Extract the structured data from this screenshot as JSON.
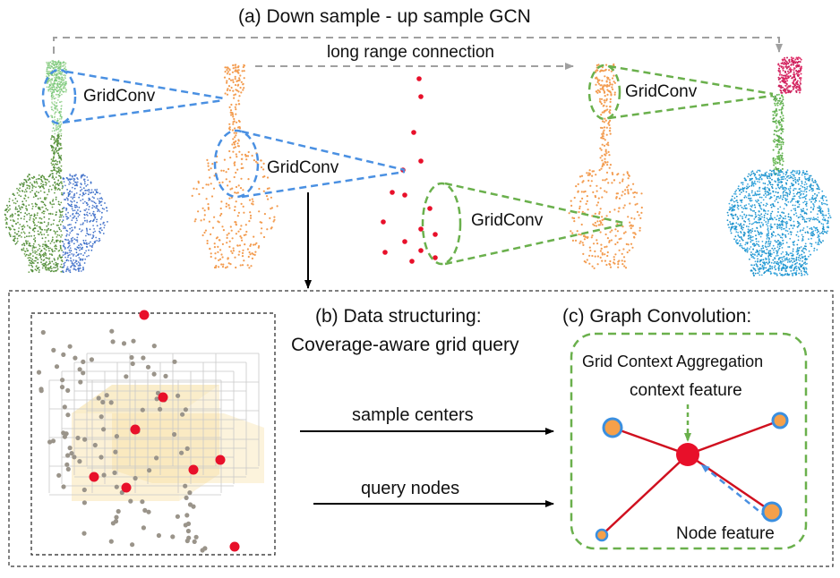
{
  "title": "(a) Down sample - up sample GCN",
  "long_range_label": "long range connection",
  "gridconv_labels": [
    "GridConv",
    "GridConv",
    "GridConv",
    "GridConv"
  ],
  "panel_b": {
    "title_line1": "(b) Data structuring:",
    "title_line2": "Coverage-aware grid query",
    "arrow_top_label": "sample centers",
    "arrow_bottom_label": "query nodes"
  },
  "panel_c": {
    "title": "(c)  Graph Convolution:",
    "subtitle": "Grid Context Aggregation",
    "context_label": "context feature",
    "node_label": "Node feature"
  },
  "colors": {
    "blue_dash": "#4a90e2",
    "green_dash": "#6ab04c",
    "gray_dash": "#a0a0a0",
    "orange_points": "#f39c50",
    "red_points": "#e8102a",
    "edge_red": "#d0101f",
    "node_orange": "#f5a04a",
    "node_ring": "#3a8fe0",
    "cyan_points": "#1a8fc8",
    "pink_points": "#e0306a",
    "green_points": "#5aa84a"
  }
}
